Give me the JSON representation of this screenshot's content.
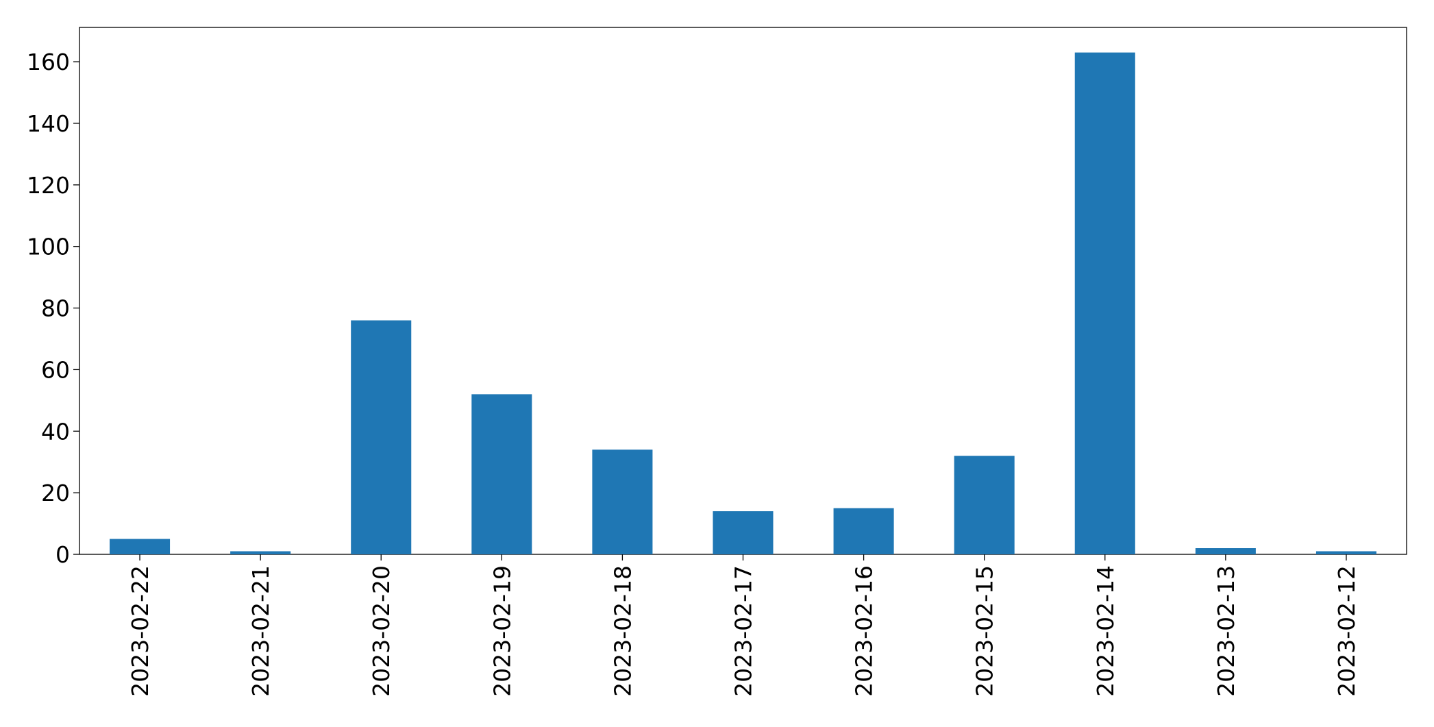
{
  "chart_data": {
    "type": "bar",
    "categories": [
      "2023-02-22",
      "2023-02-21",
      "2023-02-20",
      "2023-02-19",
      "2023-02-18",
      "2023-02-17",
      "2023-02-16",
      "2023-02-15",
      "2023-02-14",
      "2023-02-13",
      "2023-02-12"
    ],
    "values": [
      5,
      1,
      76,
      52,
      34,
      14,
      15,
      32,
      163,
      2,
      1
    ],
    "color": "#1f77b4",
    "ylim": [
      0,
      171.15
    ],
    "yticks": [
      0,
      20,
      40,
      60,
      80,
      100,
      120,
      140,
      160
    ],
    "grid": false
  }
}
